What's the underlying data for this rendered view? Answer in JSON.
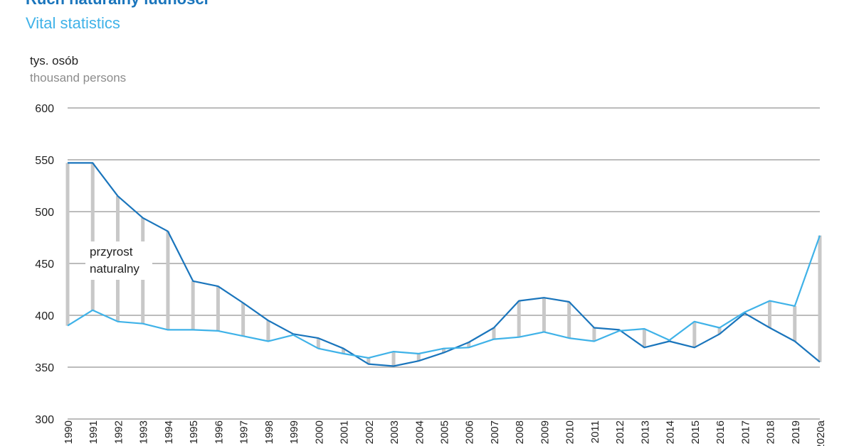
{
  "titles": {
    "pl": "Ruch naturalny ludności",
    "en": "Vital statistics"
  },
  "units": {
    "pl": "tys. osób",
    "en": "thousand persons"
  },
  "annotation": {
    "line1": "przyrost",
    "line2": "naturalny"
  },
  "colors": {
    "births": "#1a75bc",
    "deaths": "#3fb2e8",
    "increase_bars": "#c8c8c8",
    "grid": "#a6a6a6"
  },
  "chart_data": {
    "type": "line",
    "categories": [
      "1990",
      "1991",
      "1992",
      "1993",
      "1994",
      "1995",
      "1996",
      "1997",
      "1998",
      "1999",
      "2000",
      "2001",
      "2002",
      "2003",
      "2004",
      "2005",
      "2006",
      "2007",
      "2008",
      "2009",
      "2010",
      "2011",
      "2012",
      "2013",
      "2014",
      "2015",
      "2016",
      "2017",
      "2018",
      "2019",
      "2020a"
    ],
    "series": [
      {
        "key": "births",
        "values": [
          547,
          547,
          515,
          494,
          481,
          433,
          428,
          412,
          395,
          382,
          378,
          368,
          353,
          351,
          356,
          364,
          374,
          388,
          414,
          417,
          413,
          388,
          386,
          369,
          375,
          369,
          382,
          402,
          388,
          375,
          355
        ]
      },
      {
        "key": "deaths",
        "values": [
          390,
          405,
          394,
          392,
          386,
          386,
          385,
          380,
          375,
          381,
          368,
          363,
          359,
          365,
          363,
          368,
          369,
          377,
          379,
          384,
          378,
          375,
          385,
          387,
          376,
          394,
          388,
          403,
          414,
          409,
          477
        ]
      }
    ],
    "annotation_type": "range bars between series (natural increase)",
    "yticks": [
      300,
      350,
      400,
      450,
      500,
      550,
      600
    ],
    "ylim": [
      300,
      600
    ],
    "grid": true,
    "legend": "none"
  }
}
